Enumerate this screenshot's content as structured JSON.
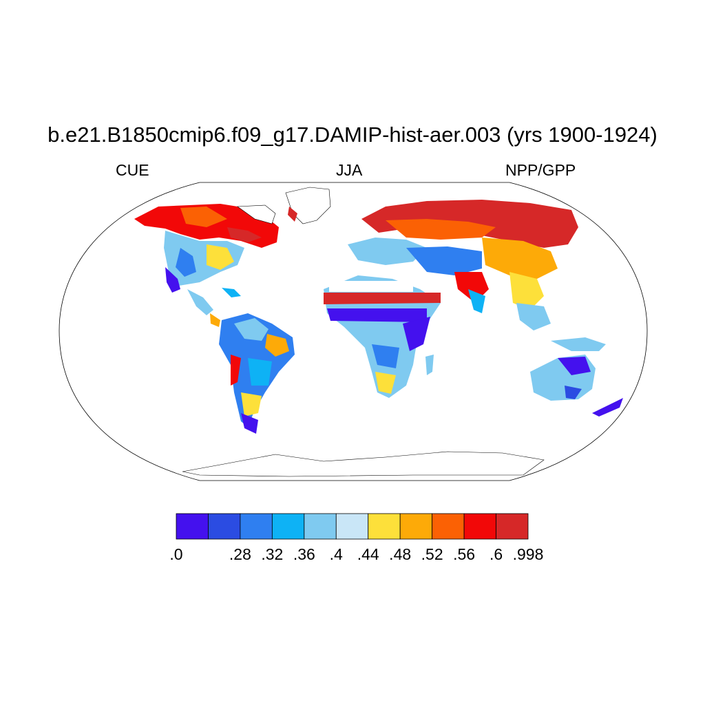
{
  "title": "b.e21.B1850cmip6.f09_g17.DAMIP-hist-aer.003 (yrs 1900-1924)",
  "subtitle_left": "CUE",
  "subtitle_center": "JJA",
  "subtitle_right": "NPP/GPP",
  "colorbar": {
    "colors": [
      "#4411ee",
      "#2b4ce2",
      "#2f7ff0",
      "#0eb2f5",
      "#7fcaf0",
      "#c9e6f7",
      "#fde03a",
      "#fdaa08",
      "#fb6104",
      "#f20808",
      "#d62828"
    ],
    "labels": [
      ".0",
      ".28",
      ".32",
      ".36",
      ".4",
      ".44",
      ".48",
      ".52",
      ".56",
      ".6",
      ".998"
    ]
  }
}
